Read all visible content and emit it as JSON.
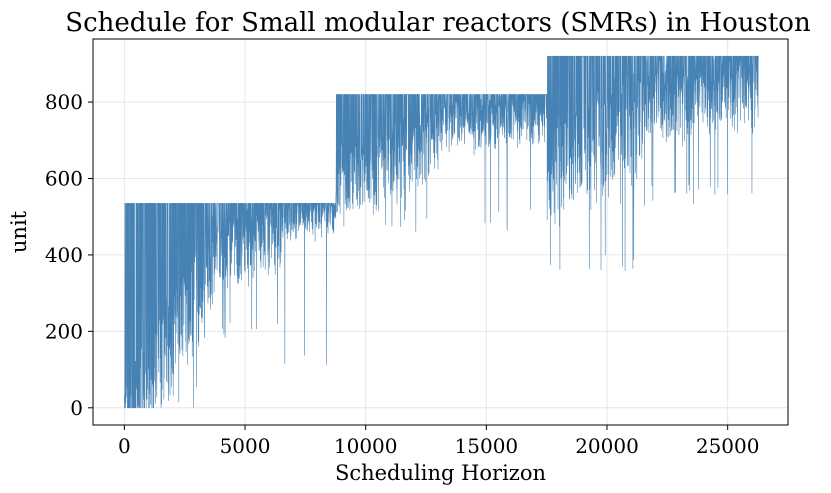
{
  "chart_data": {
    "type": "line",
    "title": "Schedule for Small modular reactors (SMRs) in Houston",
    "xlabel": "Scheduling Horizon",
    "ylabel": "unit",
    "xlim": [
      -1300,
      27500
    ],
    "ylim": [
      -45,
      965
    ],
    "xticks": [
      0,
      5000,
      10000,
      15000,
      20000,
      25000
    ],
    "xtick_labels": [
      "0",
      "5000",
      "10000",
      "15000",
      "20000",
      "25000"
    ],
    "yticks": [
      0,
      200,
      400,
      600,
      800
    ],
    "ytick_labels": [
      "0",
      "200",
      "400",
      "600",
      "800"
    ],
    "grid": true,
    "series_color": "#4682b4",
    "series": [
      {
        "x_start": 0,
        "x_end": 26280,
        "segments": [
          {
            "x0": 0,
            "x1": 3700,
            "y0_center": 40,
            "y1_center": 470,
            "cap": 535,
            "spread": 240,
            "floor": 0
          },
          {
            "x0": 3700,
            "x1": 6500,
            "y0_center": 470,
            "y1_center": 530,
            "cap": 535,
            "spread": 170,
            "floor": 180
          },
          {
            "x0": 6500,
            "x1": 8760,
            "y0_center": 530,
            "y1_center": 535,
            "cap": 535,
            "spread": 90,
            "floor": 85
          },
          {
            "x0": 8760,
            "x1": 13000,
            "y0_center": 650,
            "y1_center": 760,
            "cap": 820,
            "spread": 170,
            "floor": 460
          },
          {
            "x0": 13000,
            "x1": 17520,
            "y0_center": 780,
            "y1_center": 815,
            "cap": 820,
            "spread": 120,
            "floor": 460
          },
          {
            "x0": 17520,
            "x1": 21500,
            "y0_center": 720,
            "y1_center": 840,
            "cap": 920,
            "spread": 260,
            "floor": 340
          },
          {
            "x0": 21500,
            "x1": 26280,
            "y0_center": 870,
            "y1_center": 900,
            "cap": 920,
            "spread": 180,
            "floor": 525
          }
        ]
      }
    ]
  }
}
